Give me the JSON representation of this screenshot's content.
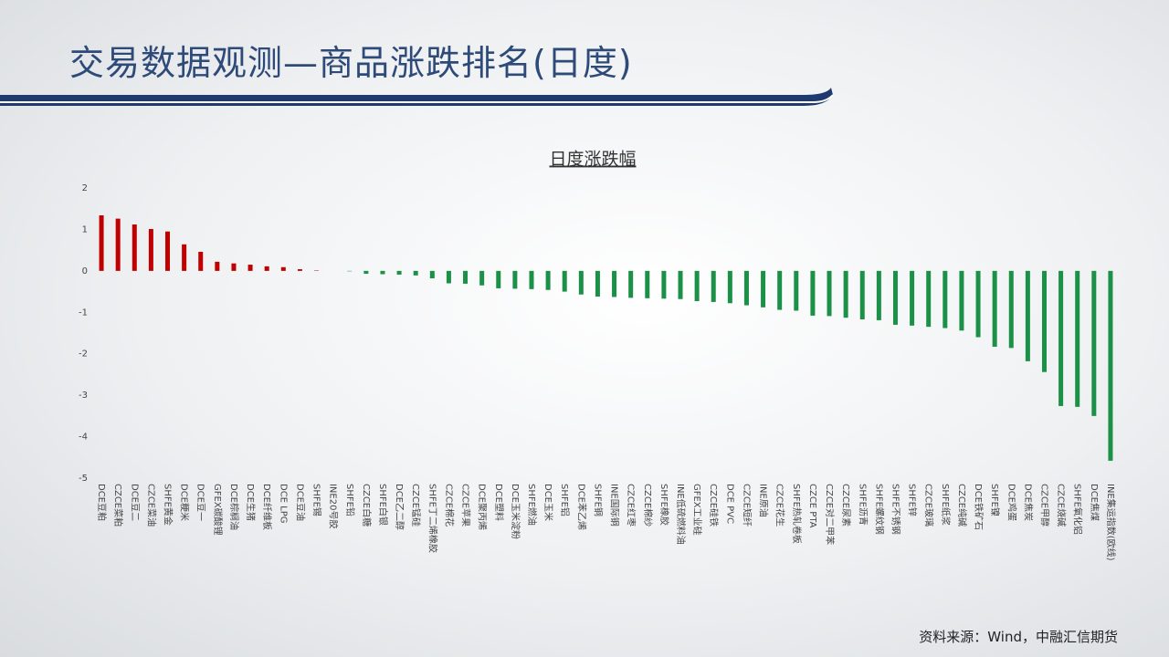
{
  "header": {
    "title": "交易数据观测—商品涨跌排名(日度)"
  },
  "footer": {
    "source": "资料来源：Wind，中融汇信期货"
  },
  "chart_data": {
    "type": "bar",
    "title": "日度涨跌幅",
    "categories": [
      "DCE豆粕",
      "CZCE菜粕",
      "DCE豆二",
      "CZCE菜油",
      "SHFE黄金",
      "DCE粳米",
      "DCE豆一",
      "GFEX碳酸锂",
      "DCE棕榈油",
      "DCE生猪",
      "DCE纤维板",
      "DCE LPG",
      "DCE豆油",
      "SHFE锡",
      "INE20号胶",
      "SHFE铅",
      "CZCE白糖",
      "SHFE白银",
      "DCE乙二醇",
      "CZCE锰硅",
      "SHFE丁二烯橡胶",
      "CZCE棉花",
      "CZCE苹果",
      "DCE聚丙烯",
      "DCE塑料",
      "DCE玉米淀粉",
      "SHFE燃油",
      "DCE玉米",
      "SHFE铝",
      "DCE苯乙烯",
      "SHFE铜",
      "INE国际铜",
      "CZCE红枣",
      "CZCE棉纱",
      "SHFE橡胶",
      "INE低硫燃料油",
      "GFEX工业硅",
      "CZCE硅铁",
      "DCE PVC",
      "CZCE短纤",
      "INE原油",
      "CZCE花生",
      "SHFE热轧卷板",
      "CZCE PTA",
      "CZCE对二甲苯",
      "CZCE尿素",
      "SHFE沥青",
      "SHFE螺纹钢",
      "SHFE不锈钢",
      "SHFE锌",
      "CZCE玻璃",
      "SHFE纸浆",
      "CZCE纯碱",
      "DCE铁矿石",
      "SHFE镍",
      "DCE鸡蛋",
      "DCE焦炭",
      "CZCE甲醇",
      "CZCE烧碱",
      "SHFE氧化铝",
      "DCE焦煤",
      "INE集运指数(欧线)"
    ],
    "values": [
      1.34,
      1.26,
      1.12,
      1.01,
      0.95,
      0.64,
      0.46,
      0.22,
      0.18,
      0.15,
      0.11,
      0.09,
      0.04,
      0.01,
      0,
      -0.01,
      -0.07,
      -0.08,
      -0.09,
      -0.11,
      -0.18,
      -0.3,
      -0.31,
      -0.35,
      -0.42,
      -0.43,
      -0.44,
      -0.46,
      -0.5,
      -0.57,
      -0.62,
      -0.63,
      -0.65,
      -0.66,
      -0.67,
      -0.68,
      -0.73,
      -0.75,
      -0.78,
      -0.83,
      -0.88,
      -0.94,
      -0.96,
      -1.08,
      -1.09,
      -1.13,
      -1.17,
      -1.19,
      -1.3,
      -1.32,
      -1.35,
      -1.38,
      -1.44,
      -1.6,
      -1.83,
      -1.86,
      -2.18,
      -2.44,
      -3.26,
      -3.28,
      -3.5,
      -4.58
    ],
    "positive_color": "#c00000",
    "negative_color": "#1a9146",
    "ylim": [
      -5,
      2
    ],
    "yticks": [
      -5,
      -4,
      -3,
      -2,
      -1,
      0,
      1,
      2
    ],
    "grid": false
  }
}
